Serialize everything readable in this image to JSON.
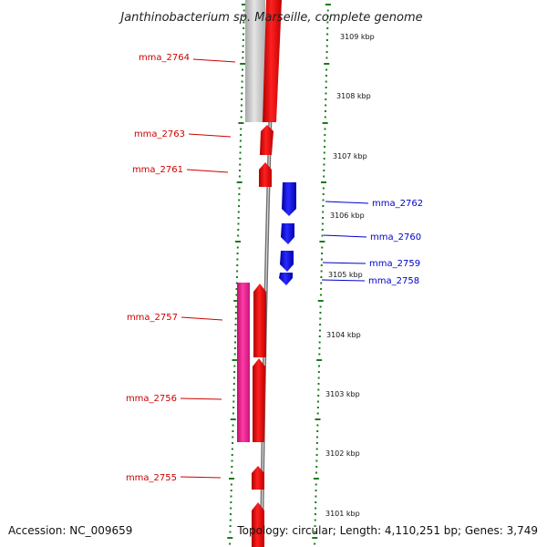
{
  "title": "Janthinobacterium sp. Marseille, complete genome",
  "accession_text": "Accession: NC_009659",
  "summary_text": "Topology: circular; Length: 4,110,251 bp; Genes: 3,749",
  "colors": {
    "forward_gene": "#ff0000",
    "reverse_gene": "#0000ff",
    "pink_feature": "#ee1188",
    "gray_feature": "#c8c8c8",
    "forward_label": "#cc0000",
    "reverse_label": "#0000cc",
    "tick": "#1a7a1a",
    "backbone": "#808080"
  },
  "scale_labels": [
    "3109 kbp",
    "3108 kbp",
    "3107 kbp",
    "3106 kbp",
    "3105 kbp",
    "3104 kbp",
    "3103 kbp",
    "3102 kbp",
    "3101 kbp"
  ],
  "forward_genes": [
    {
      "id": "mma_2764",
      "label": "mma_2764"
    },
    {
      "id": "mma_2763",
      "label": "mma_2763"
    },
    {
      "id": "mma_2761",
      "label": "mma_2761"
    },
    {
      "id": "mma_2757",
      "label": "mma_2757"
    },
    {
      "id": "mma_2756",
      "label": "mma_2756"
    },
    {
      "id": "mma_2755",
      "label": "mma_2755"
    }
  ],
  "reverse_genes": [
    {
      "id": "mma_2762",
      "label": "mma_2762"
    },
    {
      "id": "mma_2760",
      "label": "mma_2760"
    },
    {
      "id": "mma_2759",
      "label": "mma_2759"
    },
    {
      "id": "mma_2758",
      "label": "mma_2758"
    }
  ]
}
